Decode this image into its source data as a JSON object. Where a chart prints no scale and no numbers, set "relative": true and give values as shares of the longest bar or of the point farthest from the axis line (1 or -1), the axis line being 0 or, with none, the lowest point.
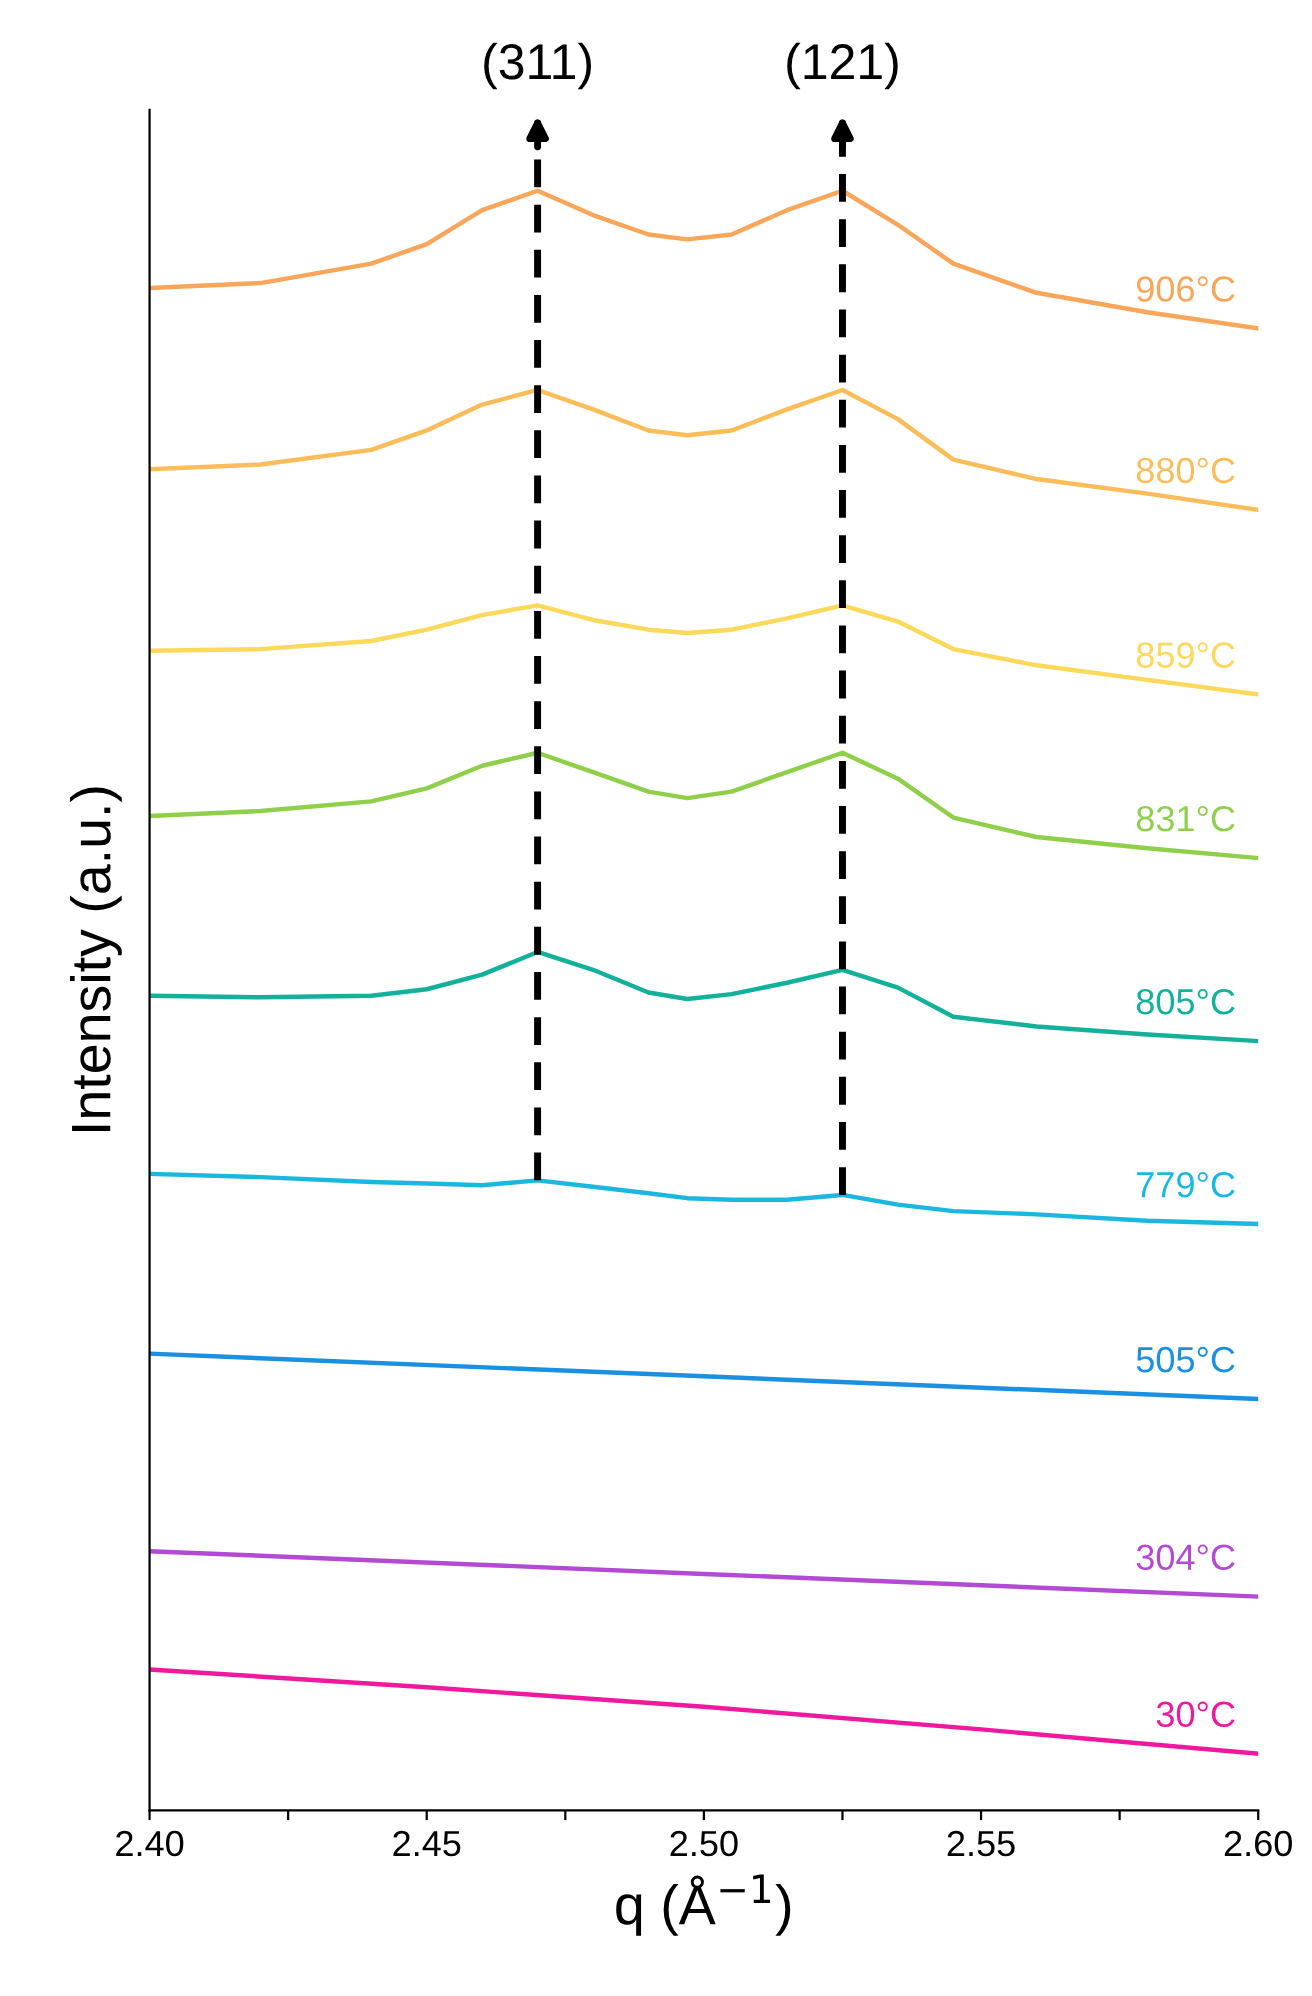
{
  "chart_data": {
    "type": "line",
    "relative": true,
    "xlabel": "q (Å$^{−1}$)",
    "ylabel": "Intensity (a.u.)",
    "xlim": [
      2.4,
      2.6
    ],
    "xticks": [
      {
        "value": 2.4,
        "label": "2.40"
      },
      {
        "value": 2.425,
        "label": null
      },
      {
        "value": 2.45,
        "label": "2.45"
      },
      {
        "value": 2.475,
        "label": null
      },
      {
        "value": 2.5,
        "label": "2.50"
      },
      {
        "value": 2.525,
        "label": null
      },
      {
        "value": 2.55,
        "label": "2.55"
      },
      {
        "value": 2.575,
        "label": null
      },
      {
        "value": 2.6,
        "label": "2.60"
      }
    ],
    "annotations": [
      {
        "text": "(311)",
        "x": 2.47
      },
      {
        "text": "(121)",
        "x": 2.525
      }
    ],
    "grid": false,
    "legend": false,
    "marker": "none",
    "line_style": "solid",
    "tick_labels": "x",
    "ref_lines": [
      {
        "axis": "x",
        "value": 2.47,
        "color": "#000000",
        "line_style": "dashed"
      },
      {
        "axis": "x",
        "value": 2.525,
        "color": "#000000",
        "line_style": "dashed"
      }
    ],
    "series": [
      {
        "name": "906°C",
        "color": "#f9a65a",
        "x": [
          2.4,
          2.42,
          2.44,
          2.45,
          2.46,
          2.47,
          2.48,
          2.49,
          2.497,
          2.505,
          2.515,
          2.525,
          2.535,
          2.545,
          2.56,
          2.58,
          2.6
        ],
        "values": [
          0.94,
          0.943,
          0.955,
          0.967,
          0.988,
          1.0,
          0.985,
          0.973,
          0.97,
          0.973,
          0.988,
          1.0,
          0.979,
          0.955,
          0.937,
          0.925,
          0.915
        ]
      },
      {
        "name": "880°C",
        "color": "#fbbd5a",
        "x": [
          2.4,
          2.42,
          2.44,
          2.45,
          2.46,
          2.47,
          2.48,
          2.49,
          2.497,
          2.505,
          2.515,
          2.525,
          2.535,
          2.545,
          2.56,
          2.58,
          2.6
        ],
        "values": [
          0.828,
          0.831,
          0.84,
          0.852,
          0.868,
          0.877,
          0.865,
          0.852,
          0.849,
          0.852,
          0.865,
          0.877,
          0.859,
          0.834,
          0.822,
          0.813,
          0.803
        ]
      },
      {
        "name": "859°C",
        "color": "#fcd95a",
        "x": [
          2.4,
          2.42,
          2.44,
          2.45,
          2.46,
          2.47,
          2.48,
          2.49,
          2.497,
          2.505,
          2.515,
          2.525,
          2.535,
          2.545,
          2.56,
          2.58,
          2.6
        ],
        "values": [
          0.716,
          0.717,
          0.722,
          0.729,
          0.738,
          0.744,
          0.735,
          0.729,
          0.727,
          0.729,
          0.736,
          0.744,
          0.734,
          0.717,
          0.707,
          0.698,
          0.689
        ]
      },
      {
        "name": "831°C",
        "color": "#8fcf4a",
        "x": [
          2.4,
          2.42,
          2.44,
          2.45,
          2.46,
          2.47,
          2.48,
          2.49,
          2.497,
          2.505,
          2.515,
          2.525,
          2.535,
          2.545,
          2.56,
          2.58,
          2.6
        ],
        "values": [
          0.614,
          0.617,
          0.623,
          0.631,
          0.645,
          0.653,
          0.641,
          0.629,
          0.625,
          0.629,
          0.641,
          0.653,
          0.637,
          0.613,
          0.601,
          0.594,
          0.588
        ]
      },
      {
        "name": "805°C",
        "color": "#13b09a",
        "x": [
          2.4,
          2.42,
          2.44,
          2.45,
          2.46,
          2.47,
          2.48,
          2.49,
          2.497,
          2.505,
          2.515,
          2.525,
          2.535,
          2.545,
          2.56,
          2.58,
          2.6
        ],
        "values": [
          0.503,
          0.502,
          0.503,
          0.507,
          0.516,
          0.53,
          0.519,
          0.505,
          0.501,
          0.504,
          0.511,
          0.519,
          0.508,
          0.49,
          0.484,
          0.479,
          0.475
        ]
      },
      {
        "name": "779°C",
        "color": "#1ab8e0",
        "x": [
          2.4,
          2.42,
          2.44,
          2.45,
          2.46,
          2.47,
          2.48,
          2.49,
          2.497,
          2.505,
          2.515,
          2.525,
          2.535,
          2.545,
          2.56,
          2.58,
          2.6
        ],
        "values": [
          0.393,
          0.391,
          0.388,
          0.387,
          0.386,
          0.389,
          0.385,
          0.381,
          0.378,
          0.377,
          0.377,
          0.38,
          0.374,
          0.37,
          0.368,
          0.364,
          0.362
        ]
      },
      {
        "name": "505°C",
        "color": "#1a90e0",
        "x": [
          2.4,
          2.5,
          2.6
        ],
        "values": [
          0.282,
          0.268,
          0.254
        ]
      },
      {
        "name": "304°C",
        "color": "#b34ad6",
        "x": [
          2.4,
          2.5,
          2.6
        ],
        "values": [
          0.16,
          0.146,
          0.132
        ]
      },
      {
        "name": "30°C",
        "color": "#f0189e",
        "x": [
          2.4,
          2.45,
          2.5,
          2.55,
          2.6
        ],
        "values": [
          0.087,
          0.076,
          0.064,
          0.05,
          0.035
        ]
      }
    ]
  }
}
